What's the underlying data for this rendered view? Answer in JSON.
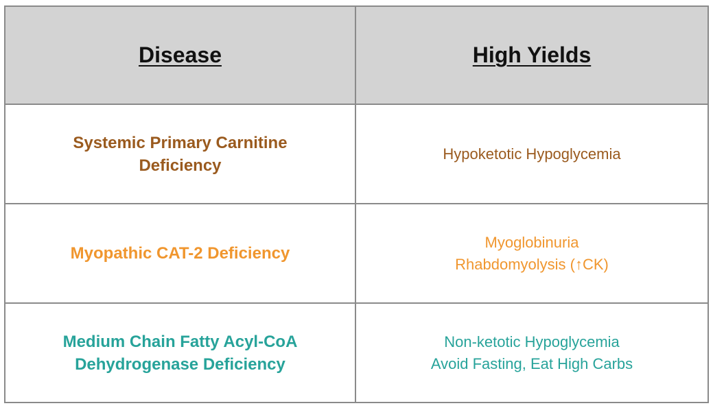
{
  "header": {
    "disease": "Disease",
    "yields": "High Yields"
  },
  "rows": [
    {
      "disease_lines": [
        "Systemic Primary Carnitine",
        "Deficiency"
      ],
      "yield_lines": [
        "Hypoketotic Hypoglycemia"
      ],
      "color": "#9a5a1e"
    },
    {
      "disease_lines": [
        "Myopathic CAT-2 Deficiency"
      ],
      "yield_lines": [
        "Myoglobinuria",
        "Rhabdomyolysis (↑CK)"
      ],
      "color": "#f0962e"
    },
    {
      "disease_lines": [
        "Medium Chain Fatty Acyl-CoA",
        "Dehydrogenase Deficiency"
      ],
      "yield_lines": [
        "Non-ketotic Hypoglycemia",
        "Avoid Fasting, Eat High Carbs"
      ],
      "color": "#27a39a"
    }
  ]
}
